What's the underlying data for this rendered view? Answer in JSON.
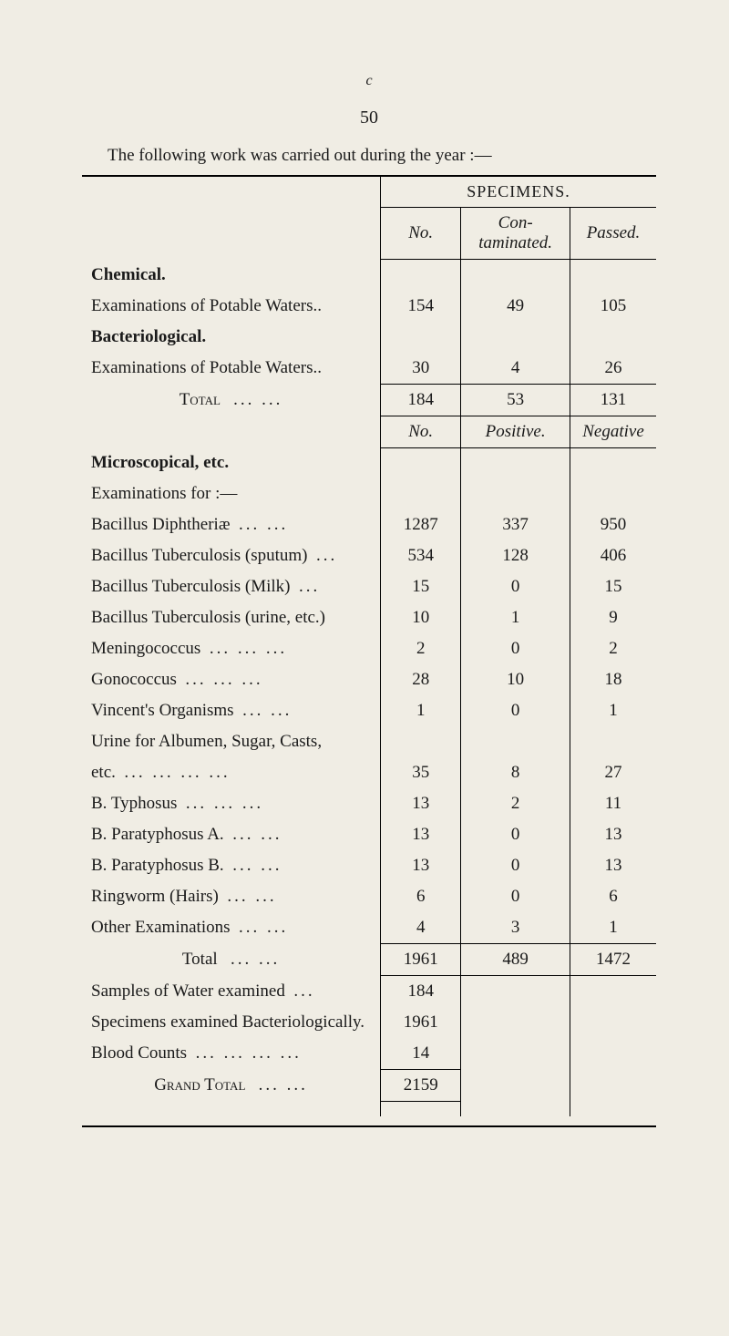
{
  "page": {
    "marginalGlyph": "c",
    "number": "50",
    "intro": "The following work was carried out during the year :—",
    "section1": {
      "specimensLabel": "SPECIMENS.",
      "headers": {
        "no": "No.",
        "mid": "Con-\ntaminated.",
        "res": "Passed."
      },
      "groups": {
        "chemical": {
          "title": "Chemical.",
          "row": {
            "label": "Examinations of Potable Waters..",
            "no": "154",
            "mid": "49",
            "res": "105"
          }
        },
        "bacteriological": {
          "title": "Bacteriological.",
          "row": {
            "label": "Examinations of Potable Waters..",
            "no": "30",
            "mid": "4",
            "res": "26"
          }
        }
      },
      "total": {
        "label": "Total",
        "dots": "...   ...",
        "no": "184",
        "mid": "53",
        "res": "131"
      }
    },
    "section2": {
      "headers": {
        "no": "No.",
        "mid": "Positive.",
        "res": "Negative"
      },
      "title": "Microscopical, etc.",
      "subhead": "Examinations for :—",
      "rows": [
        {
          "label": "Bacillus Diphtheriæ",
          "dots": "...   ...",
          "no": "1287",
          "mid": "337",
          "res": "950"
        },
        {
          "label": "Bacillus Tuberculosis (sputum)",
          "dots": "...",
          "no": "534",
          "mid": "128",
          "res": "406"
        },
        {
          "label": "Bacillus Tuberculosis (Milk)",
          "dots": "...",
          "no": "15",
          "mid": "0",
          "res": "15"
        },
        {
          "label": "Bacillus Tuberculosis (urine, etc.)",
          "dots": "",
          "no": "10",
          "mid": "1",
          "res": "9"
        },
        {
          "label": "Meningococcus",
          "dots": "...   ...   ...",
          "no": "2",
          "mid": "0",
          "res": "2"
        },
        {
          "label": "Gonococcus",
          "dots": "...   ...   ...",
          "no": "28",
          "mid": "10",
          "res": "18"
        },
        {
          "label": "Vincent's Organisms",
          "dots": "...   ...",
          "no": "1",
          "mid": "0",
          "res": "1"
        },
        {
          "label": "Urine for Albumen, Sugar, Casts,",
          "dots": "",
          "no": "",
          "mid": "",
          "res": ""
        },
        {
          "label": "etc.",
          "dots": "...   ...   ...   ...",
          "no": "35",
          "mid": "8",
          "res": "27",
          "extraIndent": true
        },
        {
          "label": "B. Typhosus",
          "dots": "...   ...   ...",
          "no": "13",
          "mid": "2",
          "res": "11"
        },
        {
          "label": "B. Paratyphosus A.",
          "dots": "...   ...",
          "no": "13",
          "mid": "0",
          "res": "13"
        },
        {
          "label": "B. Paratyphosus B.",
          "dots": "...   ...",
          "no": "13",
          "mid": "0",
          "res": "13"
        },
        {
          "label": "Ringworm (Hairs)",
          "dots": "...   ...",
          "no": "6",
          "mid": "0",
          "res": "6"
        },
        {
          "label": "Other Examinations",
          "dots": "...   ...",
          "no": "4",
          "mid": "3",
          "res": "1"
        }
      ],
      "total": {
        "label": "Total",
        "dots": "...   ...",
        "no": "1961",
        "mid": "489",
        "res": "1472"
      }
    },
    "section3": {
      "rows": [
        {
          "label": "Samples of Water examined",
          "dots": "...",
          "no": "184"
        },
        {
          "label": "Specimens examined Bacteriologically.",
          "dots": "",
          "no": "1961"
        },
        {
          "label": "Blood Counts",
          "dots": "...   ...   ...   ...",
          "no": "14"
        }
      ],
      "grand": {
        "label": "Grand Total",
        "dots": "...   ...",
        "no": "2159"
      }
    }
  },
  "styling": {
    "background": "#f0ede4",
    "textColor": "#1a1a1a",
    "fontFamily": "Times New Roman",
    "bodyFontSize": 19,
    "ruleColor": "#000000",
    "column_widths_pct": [
      52,
      14,
      19,
      15
    ]
  }
}
